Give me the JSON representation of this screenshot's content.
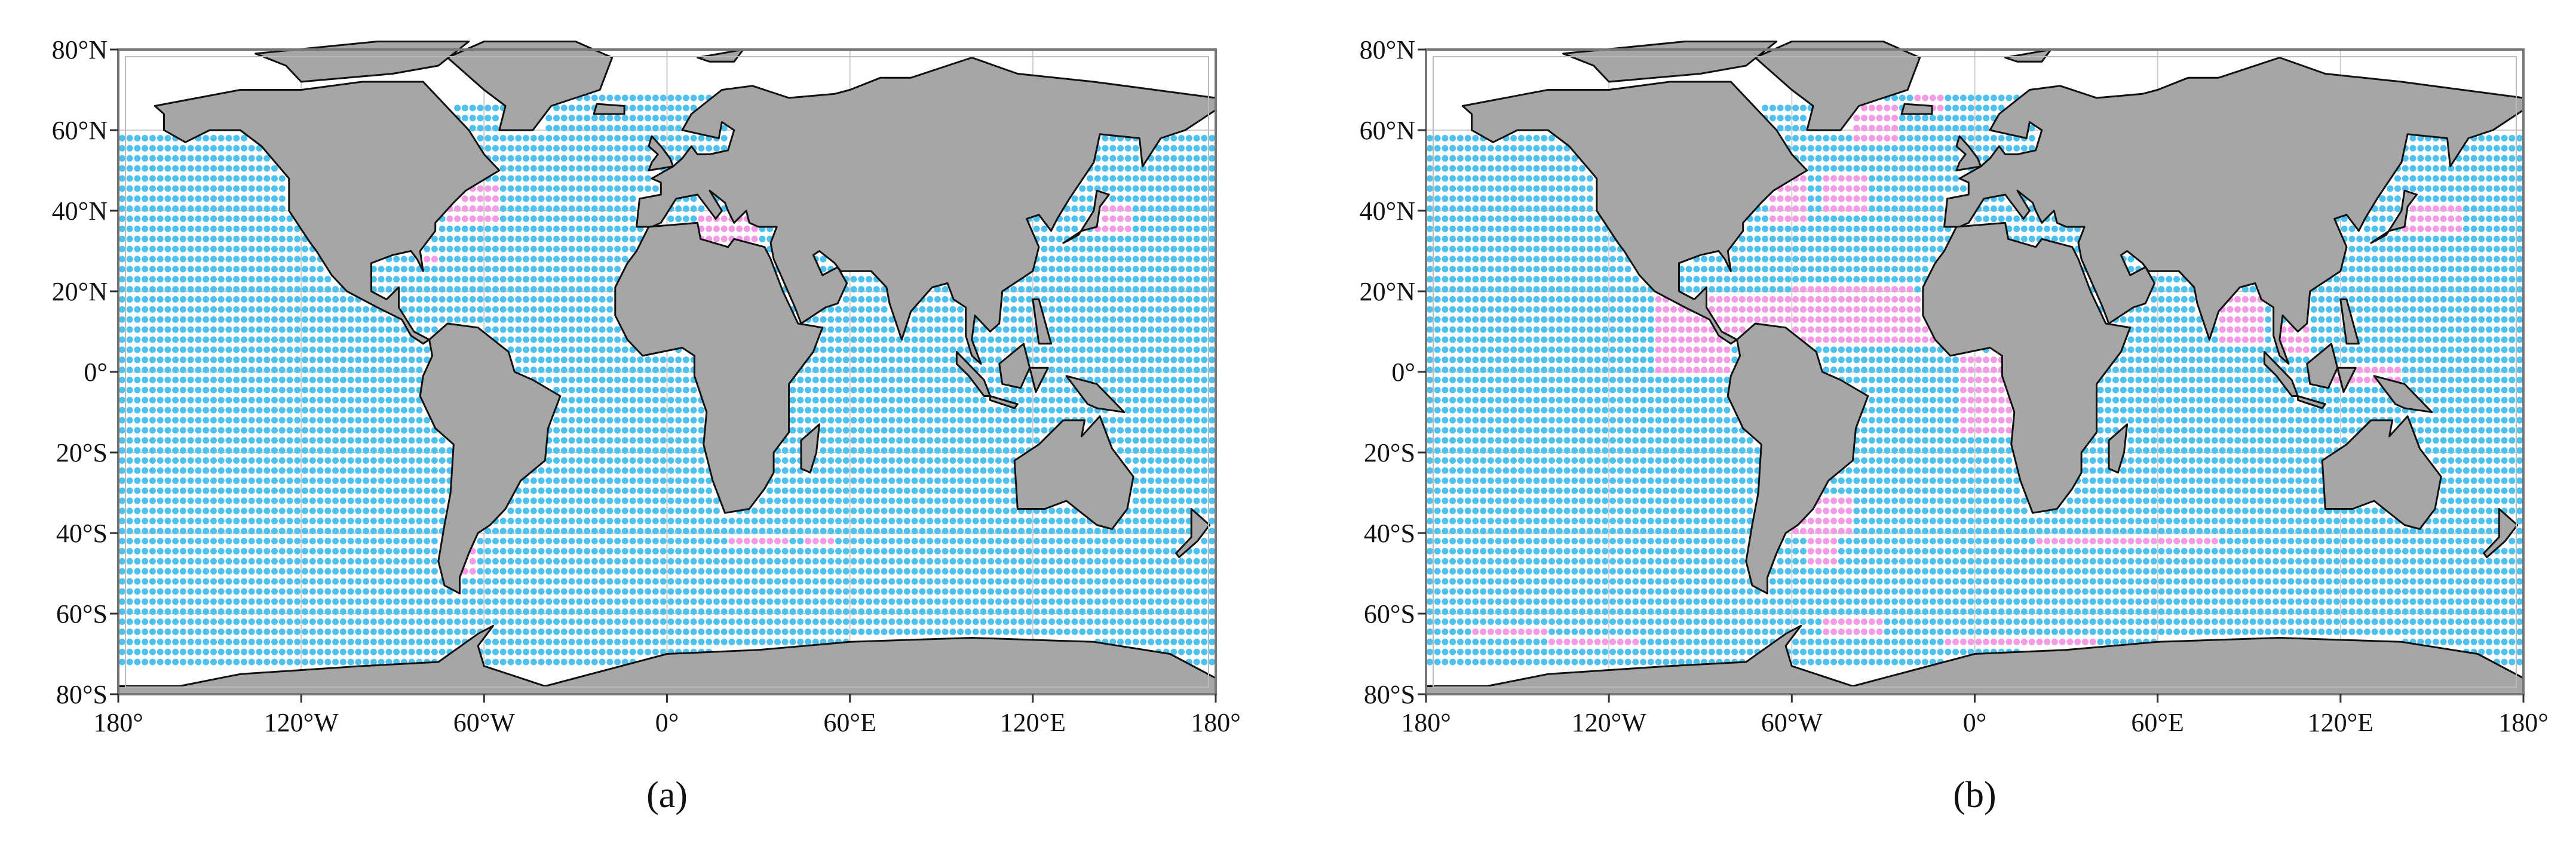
{
  "panels": [
    {
      "label": "(a)",
      "y_labels": [
        "80°N",
        "60°N",
        "40°N",
        "20°N",
        "0°",
        "20°S",
        "40°S",
        "60°S",
        "80°S"
      ],
      "x_labels": [
        "180°",
        "120°W",
        "60°W",
        "0°",
        "60°E",
        "120°E",
        "180°"
      ]
    },
    {
      "label": "(b)",
      "y_labels": [
        "80°N",
        "60°N",
        "40°N",
        "20°N",
        "0°",
        "20°S",
        "40°S",
        "60°S",
        "80°S"
      ],
      "x_labels": [
        "180°",
        "120°W",
        "60°W",
        "0°",
        "60°E",
        "120°E",
        "180°"
      ]
    }
  ]
}
